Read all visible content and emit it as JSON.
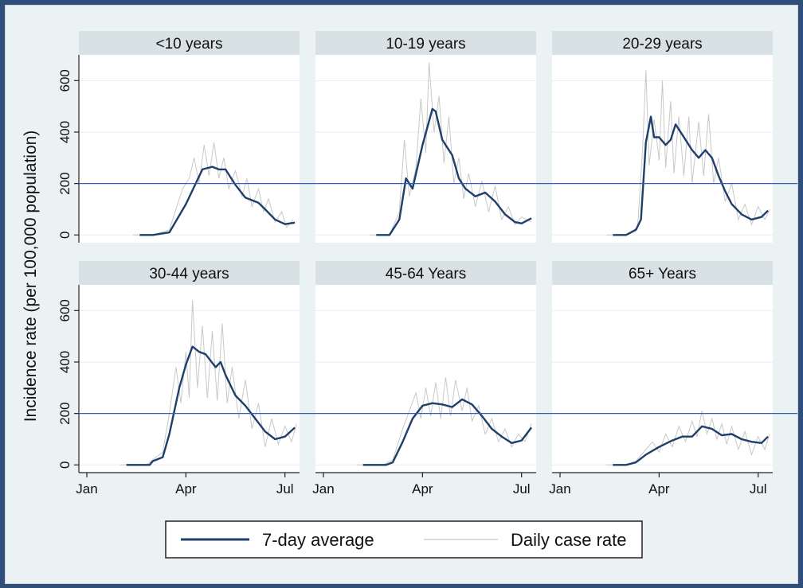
{
  "chart_data": {
    "type": "line",
    "ylabel": "Incidence rate (per 100,000 population)",
    "x_ticks": [
      "Jan",
      "Apr",
      "Jul"
    ],
    "x_domain_months": [
      0,
      6.2
    ],
    "y_ticks": [
      0,
      200,
      400,
      600
    ],
    "ylim": [
      -30,
      700
    ],
    "reference_line": 200,
    "grid": true,
    "legend": {
      "position": "bottom-center",
      "entries": [
        {
          "label": "7-day average",
          "color": "#1f3f6a"
        },
        {
          "label": "Daily case rate",
          "color": "#c8c8c8"
        }
      ]
    },
    "colors": {
      "avg": "#1f3f6a",
      "daily": "#c8c8c8",
      "ref": "#2e5fb3",
      "panel_header": "#d8e2e5"
    },
    "panels": [
      {
        "title": "<10 years",
        "avg": [
          [
            1.6,
            0
          ],
          [
            2,
            0
          ],
          [
            2.5,
            10
          ],
          [
            3,
            120
          ],
          [
            3.5,
            255
          ],
          [
            3.8,
            265
          ],
          [
            4.0,
            255
          ],
          [
            4.2,
            255
          ],
          [
            4.5,
            195
          ],
          [
            4.8,
            145
          ],
          [
            5.2,
            125
          ],
          [
            5.4,
            100
          ],
          [
            5.7,
            60
          ],
          [
            6.0,
            42
          ],
          [
            6.3,
            48
          ]
        ],
        "daily": [
          [
            1.4,
            0
          ],
          [
            2,
            0
          ],
          [
            2.5,
            20
          ],
          [
            2.9,
            180
          ],
          [
            3.1,
            220
          ],
          [
            3.25,
            300
          ],
          [
            3.4,
            200
          ],
          [
            3.55,
            350
          ],
          [
            3.7,
            230
          ],
          [
            3.85,
            360
          ],
          [
            4.0,
            220
          ],
          [
            4.15,
            300
          ],
          [
            4.3,
            180
          ],
          [
            4.5,
            250
          ],
          [
            4.7,
            150
          ],
          [
            4.85,
            220
          ],
          [
            5.0,
            110
          ],
          [
            5.2,
            180
          ],
          [
            5.35,
            90
          ],
          [
            5.5,
            140
          ],
          [
            5.7,
            50
          ],
          [
            5.9,
            90
          ],
          [
            6.05,
            30
          ],
          [
            6.25,
            60
          ]
        ]
      },
      {
        "title": "10-19 years",
        "avg": [
          [
            1.6,
            0
          ],
          [
            2,
            0
          ],
          [
            2.3,
            60
          ],
          [
            2.5,
            220
          ],
          [
            2.7,
            180
          ],
          [
            3.0,
            350
          ],
          [
            3.3,
            490
          ],
          [
            3.4,
            480
          ],
          [
            3.6,
            370
          ],
          [
            3.9,
            310
          ],
          [
            4.1,
            220
          ],
          [
            4.3,
            180
          ],
          [
            4.6,
            150
          ],
          [
            4.9,
            165
          ],
          [
            5.2,
            130
          ],
          [
            5.5,
            80
          ],
          [
            5.8,
            50
          ],
          [
            6.0,
            45
          ],
          [
            6.3,
            65
          ]
        ],
        "daily": [
          [
            1.4,
            0
          ],
          [
            2,
            0
          ],
          [
            2.3,
            90
          ],
          [
            2.45,
            370
          ],
          [
            2.6,
            150
          ],
          [
            2.8,
            260
          ],
          [
            2.95,
            530
          ],
          [
            3.1,
            320
          ],
          [
            3.2,
            670
          ],
          [
            3.35,
            400
          ],
          [
            3.5,
            540
          ],
          [
            3.65,
            280
          ],
          [
            3.8,
            460
          ],
          [
            3.95,
            200
          ],
          [
            4.1,
            300
          ],
          [
            4.25,
            140
          ],
          [
            4.4,
            240
          ],
          [
            4.6,
            110
          ],
          [
            4.8,
            210
          ],
          [
            5.0,
            90
          ],
          [
            5.2,
            190
          ],
          [
            5.4,
            60
          ],
          [
            5.6,
            110
          ],
          [
            5.8,
            40
          ],
          [
            6.0,
            70
          ],
          [
            6.3,
            50
          ]
        ]
      },
      {
        "title": "20-29 years",
        "avg": [
          [
            1.6,
            0
          ],
          [
            2,
            0
          ],
          [
            2.3,
            20
          ],
          [
            2.45,
            60
          ],
          [
            2.6,
            360
          ],
          [
            2.75,
            460
          ],
          [
            2.85,
            380
          ],
          [
            3.0,
            380
          ],
          [
            3.2,
            350
          ],
          [
            3.35,
            370
          ],
          [
            3.5,
            430
          ],
          [
            3.7,
            390
          ],
          [
            4.0,
            330
          ],
          [
            4.2,
            300
          ],
          [
            4.4,
            330
          ],
          [
            4.6,
            300
          ],
          [
            4.8,
            230
          ],
          [
            5.0,
            170
          ],
          [
            5.2,
            120
          ],
          [
            5.5,
            80
          ],
          [
            5.8,
            60
          ],
          [
            6.1,
            70
          ],
          [
            6.3,
            95
          ]
        ],
        "daily": [
          [
            1.4,
            0
          ],
          [
            2,
            0
          ],
          [
            2.35,
            30
          ],
          [
            2.5,
            330
          ],
          [
            2.6,
            640
          ],
          [
            2.7,
            270
          ],
          [
            2.85,
            450
          ],
          [
            3.0,
            290
          ],
          [
            3.1,
            600
          ],
          [
            3.2,
            260
          ],
          [
            3.35,
            520
          ],
          [
            3.45,
            240
          ],
          [
            3.6,
            460
          ],
          [
            3.75,
            230
          ],
          [
            3.9,
            460
          ],
          [
            4.0,
            200
          ],
          [
            4.2,
            440
          ],
          [
            4.35,
            230
          ],
          [
            4.5,
            470
          ],
          [
            4.65,
            200
          ],
          [
            4.8,
            300
          ],
          [
            5.0,
            130
          ],
          [
            5.2,
            200
          ],
          [
            5.4,
            60
          ],
          [
            5.6,
            120
          ],
          [
            5.8,
            40
          ],
          [
            6.0,
            110
          ],
          [
            6.2,
            60
          ],
          [
            6.35,
            100
          ]
        ]
      },
      {
        "title": "30-44 years",
        "avg": [
          [
            1.2,
            0
          ],
          [
            1.9,
            0
          ],
          [
            2.0,
            15
          ],
          [
            2.3,
            30
          ],
          [
            2.5,
            120
          ],
          [
            2.8,
            300
          ],
          [
            3.0,
            390
          ],
          [
            3.2,
            460
          ],
          [
            3.4,
            440
          ],
          [
            3.6,
            430
          ],
          [
            3.9,
            380
          ],
          [
            4.05,
            400
          ],
          [
            4.2,
            350
          ],
          [
            4.5,
            270
          ],
          [
            4.8,
            230
          ],
          [
            5.1,
            180
          ],
          [
            5.4,
            130
          ],
          [
            5.7,
            100
          ],
          [
            6.0,
            110
          ],
          [
            6.3,
            145
          ]
        ],
        "daily": [
          [
            1.0,
            0
          ],
          [
            1.8,
            0
          ],
          [
            2.0,
            20
          ],
          [
            2.3,
            50
          ],
          [
            2.5,
            200
          ],
          [
            2.7,
            380
          ],
          [
            2.85,
            240
          ],
          [
            3.0,
            440
          ],
          [
            3.1,
            260
          ],
          [
            3.2,
            640
          ],
          [
            3.35,
            300
          ],
          [
            3.5,
            540
          ],
          [
            3.65,
            260
          ],
          [
            3.8,
            520
          ],
          [
            3.95,
            250
          ],
          [
            4.1,
            550
          ],
          [
            4.25,
            240
          ],
          [
            4.4,
            380
          ],
          [
            4.6,
            180
          ],
          [
            4.8,
            330
          ],
          [
            5.0,
            140
          ],
          [
            5.2,
            240
          ],
          [
            5.4,
            70
          ],
          [
            5.6,
            180
          ],
          [
            5.8,
            80
          ],
          [
            6.0,
            150
          ],
          [
            6.2,
            90
          ],
          [
            6.35,
            160
          ]
        ]
      },
      {
        "title": "45-64 Years",
        "avg": [
          [
            1.2,
            0
          ],
          [
            1.9,
            0
          ],
          [
            2.1,
            10
          ],
          [
            2.4,
            90
          ],
          [
            2.7,
            180
          ],
          [
            3.0,
            230
          ],
          [
            3.3,
            240
          ],
          [
            3.6,
            235
          ],
          [
            3.9,
            225
          ],
          [
            4.2,
            255
          ],
          [
            4.5,
            235
          ],
          [
            4.8,
            190
          ],
          [
            5.1,
            140
          ],
          [
            5.4,
            110
          ],
          [
            5.7,
            85
          ],
          [
            6.0,
            95
          ],
          [
            6.3,
            145
          ]
        ],
        "daily": [
          [
            1.0,
            0
          ],
          [
            1.8,
            0
          ],
          [
            2.1,
            20
          ],
          [
            2.4,
            140
          ],
          [
            2.6,
            210
          ],
          [
            2.8,
            280
          ],
          [
            2.95,
            180
          ],
          [
            3.1,
            300
          ],
          [
            3.25,
            190
          ],
          [
            3.4,
            320
          ],
          [
            3.55,
            180
          ],
          [
            3.7,
            340
          ],
          [
            3.85,
            190
          ],
          [
            4.0,
            330
          ],
          [
            4.2,
            210
          ],
          [
            4.35,
            300
          ],
          [
            4.5,
            170
          ],
          [
            4.7,
            230
          ],
          [
            4.9,
            120
          ],
          [
            5.1,
            180
          ],
          [
            5.3,
            90
          ],
          [
            5.5,
            140
          ],
          [
            5.7,
            70
          ],
          [
            5.9,
            120
          ],
          [
            6.1,
            90
          ],
          [
            6.3,
            160
          ]
        ]
      },
      {
        "title": "65+ Years",
        "avg": [
          [
            1.6,
            0
          ],
          [
            2.0,
            0
          ],
          [
            2.3,
            10
          ],
          [
            2.6,
            40
          ],
          [
            3.0,
            70
          ],
          [
            3.4,
            95
          ],
          [
            3.7,
            110
          ],
          [
            4.0,
            110
          ],
          [
            4.3,
            150
          ],
          [
            4.6,
            140
          ],
          [
            4.9,
            115
          ],
          [
            5.2,
            120
          ],
          [
            5.5,
            100
          ],
          [
            5.8,
            90
          ],
          [
            6.1,
            85
          ],
          [
            6.3,
            110
          ]
        ],
        "daily": [
          [
            1.4,
            0
          ],
          [
            2,
            0
          ],
          [
            2.3,
            15
          ],
          [
            2.6,
            60
          ],
          [
            2.8,
            90
          ],
          [
            3.0,
            50
          ],
          [
            3.2,
            120
          ],
          [
            3.4,
            70
          ],
          [
            3.6,
            150
          ],
          [
            3.8,
            90
          ],
          [
            4.0,
            170
          ],
          [
            4.15,
            110
          ],
          [
            4.3,
            210
          ],
          [
            4.45,
            120
          ],
          [
            4.6,
            180
          ],
          [
            4.75,
            100
          ],
          [
            4.9,
            160
          ],
          [
            5.05,
            80
          ],
          [
            5.2,
            150
          ],
          [
            5.4,
            60
          ],
          [
            5.6,
            130
          ],
          [
            5.8,
            40
          ],
          [
            6.0,
            110
          ],
          [
            6.2,
            60
          ],
          [
            6.35,
            120
          ]
        ]
      }
    ]
  }
}
